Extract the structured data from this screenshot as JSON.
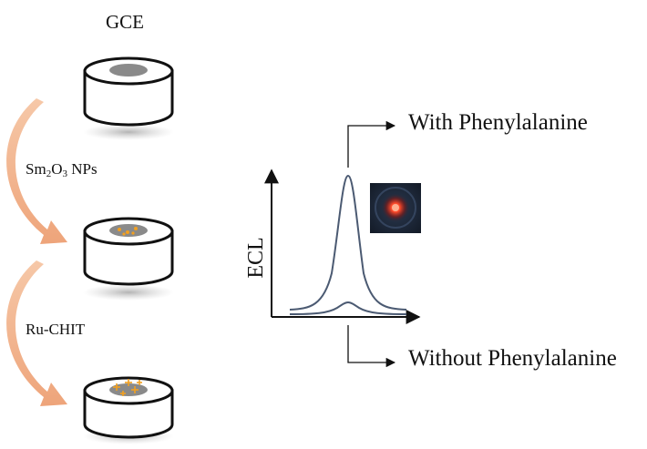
{
  "electrode": {
    "label": "GCE"
  },
  "steps": [
    {
      "base": "Sm",
      "sub1": "2",
      "mid": "O",
      "sub2": "3",
      "tail": " NPs"
    },
    {
      "text": "Ru-CHIT"
    }
  ],
  "plot": {
    "ylabel": "ECL",
    "with_label": "With Phenylalanine",
    "without_label": "Without Phenylalanine"
  },
  "colors": {
    "arrow": "#f0b38c",
    "curve": "#4b5a72",
    "electrode_face": "#8a8a8a",
    "particles": "#f2a020",
    "inset_bg": "#1d2738",
    "inset_glow": "#ff4a2a"
  }
}
